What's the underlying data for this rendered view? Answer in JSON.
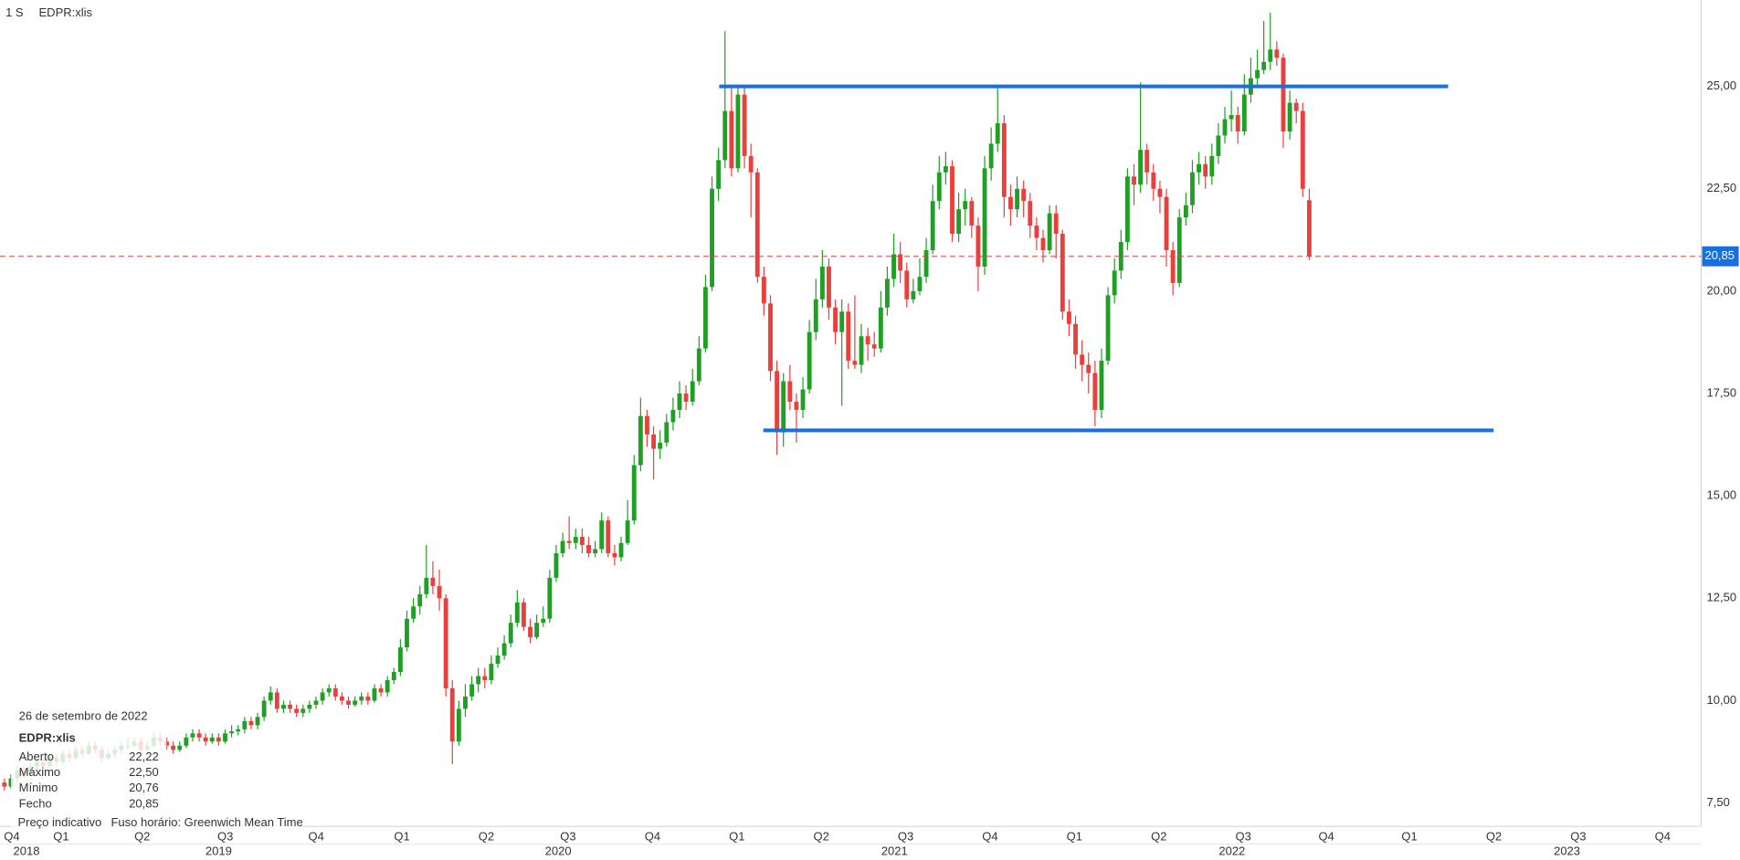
{
  "header": {
    "interval": "1 S",
    "symbol": "EDPR:xlis"
  },
  "chart_data": {
    "type": "candlestick",
    "up_color": "#1fa024",
    "down_color": "#e8403c",
    "grid": true,
    "xlim": [
      -0.68,
      261.37
    ],
    "ylim": [
      6.93,
      27.11
    ],
    "yticks": [
      {
        "value": 7.5,
        "label": "7,50"
      },
      {
        "value": 10,
        "label": "10,00"
      },
      {
        "value": 12.5,
        "label": "12,50"
      },
      {
        "value": 15,
        "label": "15,00"
      },
      {
        "value": 17.5,
        "label": "17,50"
      },
      {
        "value": 20,
        "label": "20,00"
      },
      {
        "value": 22.5,
        "label": "22,50"
      },
      {
        "value": 25,
        "label": "25,00"
      }
    ],
    "xticks": [
      {
        "value": -0.6,
        "label": "Q4"
      },
      {
        "value": 7.0,
        "label": "Q1"
      },
      {
        "value": 19.5,
        "label": "Q2"
      },
      {
        "value": 32.3,
        "label": "Q3"
      },
      {
        "value": 46.3,
        "label": "Q4"
      },
      {
        "value": 59.5,
        "label": "Q1"
      },
      {
        "value": 72.5,
        "label": "Q2"
      },
      {
        "value": 85.1,
        "label": "Q3"
      },
      {
        "value": 98.1,
        "label": "Q4"
      },
      {
        "value": 111.1,
        "label": "Q1"
      },
      {
        "value": 124.1,
        "label": "Q2"
      },
      {
        "value": 137.1,
        "label": "Q3"
      },
      {
        "value": 150.1,
        "label": "Q4"
      },
      {
        "value": 163.1,
        "label": "Q1"
      },
      {
        "value": 176.1,
        "label": "Q2"
      },
      {
        "value": 189.1,
        "label": "Q3"
      },
      {
        "value": 201.9,
        "label": "Q4"
      },
      {
        "value": 214.7,
        "label": "Q1"
      },
      {
        "value": 227.7,
        "label": "Q2"
      },
      {
        "value": 240.7,
        "label": "Q3"
      },
      {
        "value": 253.7,
        "label": "Q4"
      }
    ],
    "year_ticks": [
      {
        "value": 3.4,
        "label": "2018"
      },
      {
        "value": 33,
        "label": "2019"
      },
      {
        "value": 85.3,
        "label": "2020"
      },
      {
        "value": 137.1,
        "label": "2021"
      },
      {
        "value": 189.1,
        "label": "2022"
      },
      {
        "value": 240.7,
        "label": "2023"
      }
    ],
    "last_price": {
      "value": 20.85,
      "label": "20,85",
      "color": "#e8403c",
      "label_color": "#1a6fdf"
    },
    "lines": [
      {
        "color": "#1a6fdf",
        "x": [
          110.1,
          222.4
        ],
        "y": [
          25,
          25
        ]
      },
      {
        "color": "#1a6fdf",
        "x": [
          116.9,
          229.4
        ],
        "y": [
          16.6,
          16.6
        ]
      }
    ],
    "candles": [
      [
        8.0,
        8.1,
        7.8,
        7.9
      ],
      [
        7.9,
        8.2,
        7.85,
        8.1
      ],
      [
        8.1,
        8.4,
        8.0,
        8.3
      ],
      [
        8.3,
        8.4,
        8.1,
        8.2
      ],
      [
        8.2,
        8.5,
        8.15,
        8.4
      ],
      [
        8.4,
        8.6,
        8.3,
        8.5
      ],
      [
        8.5,
        8.6,
        8.3,
        8.4
      ],
      [
        8.4,
        8.7,
        8.35,
        8.6
      ],
      [
        8.6,
        8.7,
        8.4,
        8.5
      ],
      [
        8.5,
        8.8,
        8.45,
        8.7
      ],
      [
        8.7,
        8.8,
        8.5,
        8.6
      ],
      [
        8.6,
        8.9,
        8.55,
        8.8
      ],
      [
        8.8,
        8.9,
        8.6,
        8.7
      ],
      [
        8.7,
        9.0,
        8.65,
        8.9
      ],
      [
        8.9,
        9.0,
        8.7,
        8.8
      ],
      [
        8.8,
        8.9,
        8.5,
        8.6
      ],
      [
        8.6,
        8.8,
        8.55,
        8.7
      ],
      [
        8.7,
        8.9,
        8.6,
        8.8
      ],
      [
        8.8,
        9.0,
        8.7,
        8.9
      ],
      [
        8.9,
        9.1,
        8.8,
        8.9
      ],
      [
        8.9,
        9.1,
        8.85,
        9.0
      ],
      [
        9.0,
        9.1,
        8.7,
        8.8
      ],
      [
        8.8,
        9.0,
        8.75,
        8.9
      ],
      [
        8.9,
        9.2,
        8.85,
        9.1
      ],
      [
        9.1,
        9.2,
        8.9,
        9.0
      ],
      [
        9.0,
        9.1,
        8.8,
        8.9
      ],
      [
        8.9,
        9.0,
        8.7,
        8.8
      ],
      [
        8.8,
        9.0,
        8.75,
        8.9
      ],
      [
        8.9,
        9.2,
        8.85,
        9.1
      ],
      [
        9.1,
        9.3,
        9.0,
        9.2
      ],
      [
        9.2,
        9.3,
        9.0,
        9.1
      ],
      [
        9.1,
        9.2,
        8.9,
        9.0
      ],
      [
        9.0,
        9.2,
        8.95,
        9.1
      ],
      [
        9.1,
        9.2,
        8.9,
        9.0
      ],
      [
        9.0,
        9.3,
        8.95,
        9.2
      ],
      [
        9.2,
        9.4,
        9.1,
        9.25
      ],
      [
        9.25,
        9.4,
        9.15,
        9.3
      ],
      [
        9.3,
        9.6,
        9.2,
        9.5
      ],
      [
        9.5,
        9.6,
        9.3,
        9.4
      ],
      [
        9.4,
        9.7,
        9.3,
        9.6
      ],
      [
        9.6,
        10.1,
        9.5,
        10.0
      ],
      [
        10.0,
        10.35,
        9.9,
        10.2
      ],
      [
        10.2,
        10.3,
        9.7,
        9.8
      ],
      [
        9.8,
        10.0,
        9.7,
        9.9
      ],
      [
        9.9,
        10.0,
        9.7,
        9.8
      ],
      [
        9.8,
        9.9,
        9.6,
        9.7
      ],
      [
        9.7,
        9.9,
        9.6,
        9.8
      ],
      [
        9.8,
        10.0,
        9.7,
        9.9
      ],
      [
        9.9,
        10.1,
        9.8,
        10.0
      ],
      [
        10.0,
        10.3,
        9.9,
        10.2
      ],
      [
        10.2,
        10.4,
        10.1,
        10.3
      ],
      [
        10.3,
        10.4,
        10.0,
        10.1
      ],
      [
        10.1,
        10.2,
        9.9,
        10.0
      ],
      [
        10.0,
        10.1,
        9.8,
        9.9
      ],
      [
        9.9,
        10.1,
        9.85,
        10.0
      ],
      [
        10.0,
        10.2,
        9.9,
        10.1
      ],
      [
        10.1,
        10.2,
        9.9,
        10.0
      ],
      [
        10.0,
        10.4,
        9.95,
        10.3
      ],
      [
        10.3,
        10.4,
        10.1,
        10.2
      ],
      [
        10.2,
        10.6,
        10.1,
        10.5
      ],
      [
        10.5,
        10.8,
        10.4,
        10.7
      ],
      [
        10.7,
        11.5,
        10.6,
        11.3
      ],
      [
        11.3,
        12.2,
        11.2,
        12.0
      ],
      [
        12.0,
        12.5,
        11.9,
        12.3
      ],
      [
        12.3,
        12.8,
        12.1,
        12.6
      ],
      [
        12.6,
        13.8,
        12.5,
        13.0
      ],
      [
        13.0,
        13.4,
        12.6,
        12.8
      ],
      [
        12.8,
        13.2,
        12.2,
        12.5
      ],
      [
        12.5,
        12.6,
        10.1,
        10.3
      ],
      [
        10.3,
        10.5,
        8.45,
        9.0
      ],
      [
        9.0,
        10.0,
        8.9,
        9.8
      ],
      [
        9.8,
        10.4,
        9.6,
        10.1
      ],
      [
        10.1,
        10.6,
        10.0,
        10.4
      ],
      [
        10.4,
        10.8,
        10.2,
        10.6
      ],
      [
        10.6,
        10.8,
        10.3,
        10.5
      ],
      [
        10.5,
        11.1,
        10.4,
        10.9
      ],
      [
        10.9,
        11.3,
        10.8,
        11.1
      ],
      [
        11.1,
        11.6,
        11.0,
        11.4
      ],
      [
        11.4,
        12.1,
        11.3,
        11.9
      ],
      [
        11.9,
        12.7,
        11.8,
        12.4
      ],
      [
        12.4,
        12.5,
        11.7,
        11.8
      ],
      [
        11.8,
        12.0,
        11.4,
        11.55
      ],
      [
        11.55,
        12.1,
        11.5,
        11.9
      ],
      [
        11.9,
        12.3,
        11.8,
        12.0
      ],
      [
        12.0,
        13.2,
        11.9,
        13.0
      ],
      [
        13.0,
        13.8,
        12.9,
        13.6
      ],
      [
        13.6,
        14.1,
        13.5,
        13.9
      ],
      [
        13.9,
        14.5,
        13.7,
        13.85
      ],
      [
        13.85,
        14.2,
        13.7,
        14.0
      ],
      [
        14.0,
        14.2,
        13.6,
        13.8
      ],
      [
        13.8,
        14.0,
        13.5,
        13.6
      ],
      [
        13.6,
        13.9,
        13.5,
        13.7
      ],
      [
        13.7,
        14.6,
        13.6,
        14.4
      ],
      [
        14.4,
        14.5,
        13.5,
        13.6
      ],
      [
        13.6,
        13.8,
        13.3,
        13.5
      ],
      [
        13.5,
        14.0,
        13.4,
        13.85
      ],
      [
        13.85,
        14.9,
        13.8,
        14.4
      ],
      [
        14.4,
        16.0,
        14.3,
        15.75
      ],
      [
        15.75,
        17.4,
        15.6,
        16.95
      ],
      [
        16.95,
        17.1,
        16.2,
        16.5
      ],
      [
        16.5,
        16.7,
        15.4,
        16.15
      ],
      [
        16.15,
        16.6,
        15.9,
        16.3
      ],
      [
        16.3,
        17.0,
        16.2,
        16.8
      ],
      [
        16.8,
        17.4,
        16.6,
        17.1
      ],
      [
        17.1,
        17.8,
        16.9,
        17.5
      ],
      [
        17.5,
        17.7,
        17.1,
        17.3
      ],
      [
        17.3,
        18.1,
        17.2,
        17.8
      ],
      [
        17.8,
        18.9,
        17.7,
        18.6
      ],
      [
        18.6,
        20.4,
        18.5,
        20.1
      ],
      [
        20.1,
        22.8,
        20.0,
        22.5
      ],
      [
        22.5,
        23.5,
        22.2,
        23.2
      ],
      [
        23.2,
        26.35,
        23.0,
        24.4
      ],
      [
        24.4,
        25.0,
        22.8,
        23.0
      ],
      [
        23.0,
        25.0,
        22.9,
        24.8
      ],
      [
        24.8,
        25.0,
        23.0,
        23.3
      ],
      [
        23.3,
        23.6,
        21.8,
        22.9
      ],
      [
        22.9,
        23.0,
        20.2,
        20.35
      ],
      [
        20.35,
        20.6,
        19.4,
        19.7
      ],
      [
        19.7,
        19.9,
        17.8,
        18.05
      ],
      [
        18.05,
        18.3,
        16.0,
        16.55
      ],
      [
        16.55,
        18.0,
        16.2,
        17.8
      ],
      [
        17.8,
        18.2,
        17.1,
        17.3
      ],
      [
        17.3,
        17.5,
        16.3,
        17.1
      ],
      [
        17.1,
        17.9,
        16.9,
        17.6
      ],
      [
        17.6,
        19.3,
        17.5,
        19.0
      ],
      [
        19.0,
        20.3,
        18.8,
        19.8
      ],
      [
        19.8,
        21.0,
        19.6,
        20.6
      ],
      [
        20.6,
        20.8,
        19.3,
        19.6
      ],
      [
        19.6,
        19.8,
        18.7,
        19.0
      ],
      [
        19.0,
        19.8,
        17.2,
        19.5
      ],
      [
        19.5,
        19.7,
        18.1,
        18.3
      ],
      [
        18.3,
        19.9,
        18.1,
        18.2
      ],
      [
        18.2,
        19.2,
        18.0,
        18.9
      ],
      [
        18.9,
        19.1,
        18.3,
        18.7
      ],
      [
        18.7,
        19.0,
        18.4,
        18.6
      ],
      [
        18.6,
        20.0,
        18.5,
        19.6
      ],
      [
        19.6,
        20.6,
        19.4,
        20.3
      ],
      [
        20.3,
        21.4,
        20.1,
        20.9
      ],
      [
        20.9,
        21.2,
        20.2,
        20.5
      ],
      [
        20.5,
        20.7,
        19.6,
        19.8
      ],
      [
        19.8,
        20.3,
        19.7,
        20.0
      ],
      [
        20.0,
        20.8,
        19.9,
        20.35
      ],
      [
        20.35,
        21.3,
        20.2,
        21.0
      ],
      [
        21.0,
        22.6,
        20.9,
        22.2
      ],
      [
        22.2,
        23.3,
        22.0,
        22.9
      ],
      [
        22.9,
        23.4,
        22.6,
        23.05
      ],
      [
        23.05,
        23.2,
        21.2,
        21.4
      ],
      [
        21.4,
        22.4,
        21.2,
        22.0
      ],
      [
        22.0,
        22.5,
        21.6,
        22.2
      ],
      [
        22.2,
        22.3,
        21.3,
        21.6
      ],
      [
        21.6,
        21.8,
        20.0,
        20.6
      ],
      [
        20.6,
        23.3,
        20.4,
        23.0
      ],
      [
        23.0,
        24.0,
        22.7,
        23.6
      ],
      [
        23.6,
        25.0,
        23.4,
        24.1
      ],
      [
        24.1,
        24.3,
        21.8,
        22.3
      ],
      [
        22.3,
        22.6,
        21.6,
        22.0
      ],
      [
        22.0,
        22.8,
        21.8,
        22.5
      ],
      [
        22.5,
        22.7,
        21.8,
        22.2
      ],
      [
        22.2,
        22.4,
        21.3,
        21.6
      ],
      [
        21.6,
        21.8,
        21.0,
        21.3
      ],
      [
        21.3,
        21.5,
        20.7,
        21.0
      ],
      [
        21.0,
        22.1,
        20.9,
        21.9
      ],
      [
        21.9,
        22.1,
        20.8,
        21.4
      ],
      [
        21.4,
        21.5,
        19.3,
        19.5
      ],
      [
        19.5,
        19.8,
        18.9,
        19.2
      ],
      [
        19.2,
        19.4,
        18.1,
        18.45
      ],
      [
        18.45,
        18.8,
        17.8,
        18.2
      ],
      [
        18.2,
        18.5,
        17.5,
        18.0
      ],
      [
        18.0,
        18.3,
        16.7,
        17.1
      ],
      [
        17.1,
        18.6,
        16.9,
        18.3
      ],
      [
        18.3,
        20.1,
        18.2,
        19.9
      ],
      [
        19.9,
        20.8,
        19.7,
        20.5
      ],
      [
        20.5,
        21.5,
        20.3,
        21.2
      ],
      [
        21.2,
        23.0,
        21.0,
        22.8
      ],
      [
        22.8,
        23.1,
        22.1,
        22.6
      ],
      [
        22.6,
        25.1,
        22.4,
        23.45
      ],
      [
        23.45,
        23.6,
        22.6,
        22.9
      ],
      [
        22.9,
        23.1,
        22.2,
        22.5
      ],
      [
        22.5,
        22.7,
        21.9,
        22.3
      ],
      [
        22.3,
        22.5,
        20.6,
        21.0
      ],
      [
        21.0,
        21.2,
        19.9,
        20.2
      ],
      [
        20.2,
        22.0,
        20.1,
        21.8
      ],
      [
        21.8,
        22.4,
        21.6,
        22.1
      ],
      [
        22.1,
        23.2,
        21.9,
        22.9
      ],
      [
        22.9,
        23.4,
        22.6,
        23.1
      ],
      [
        23.1,
        23.3,
        22.5,
        22.8
      ],
      [
        22.8,
        23.6,
        22.6,
        23.3
      ],
      [
        23.3,
        24.1,
        23.1,
        23.8
      ],
      [
        23.8,
        24.5,
        23.6,
        24.2
      ],
      [
        24.2,
        24.9,
        23.9,
        24.3
      ],
      [
        24.3,
        24.5,
        23.6,
        23.9
      ],
      [
        23.9,
        25.3,
        23.8,
        24.8
      ],
      [
        24.8,
        25.7,
        24.6,
        25.2
      ],
      [
        25.2,
        25.9,
        25.0,
        25.4
      ],
      [
        25.4,
        26.6,
        25.3,
        25.6
      ],
      [
        25.6,
        26.8,
        25.4,
        25.9
      ],
      [
        25.9,
        26.1,
        25.5,
        25.7
      ],
      [
        25.7,
        25.8,
        23.5,
        23.9
      ],
      [
        23.9,
        24.9,
        23.7,
        24.6
      ],
      [
        24.6,
        24.7,
        24.1,
        24.4
      ],
      [
        24.4,
        24.6,
        22.3,
        22.5
      ],
      [
        22.22,
        22.5,
        20.76,
        20.85
      ]
    ]
  },
  "info": {
    "date": "26 de setembro de 2022",
    "symbol": "EDPR:xlis",
    "rows": [
      {
        "label": "Aberto",
        "value": "22,22"
      },
      {
        "label": "Máximo",
        "value": "22,50"
      },
      {
        "label": "Mínimo",
        "value": "20,76"
      },
      {
        "label": "Fecho",
        "value": "20,85"
      }
    ]
  },
  "footer": [
    "Preço indicativo",
    "Fuso horário: Greenwich Mean Time"
  ]
}
